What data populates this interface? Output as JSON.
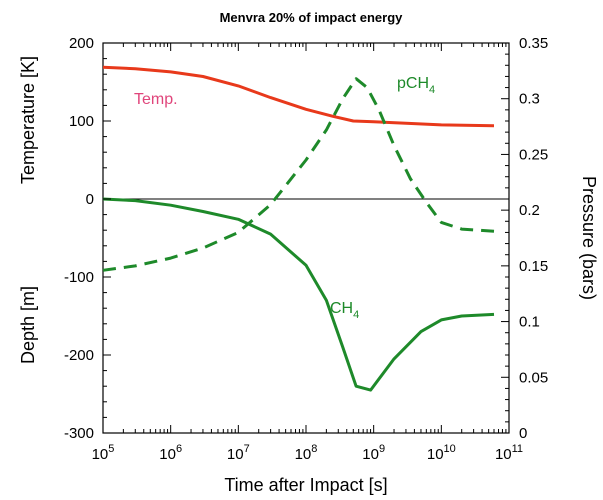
{
  "chart_data": {
    "type": "line",
    "title": "Menvra 20% of impact energy",
    "xlabel": "Time after Impact [s]",
    "xscale": "log",
    "xlim": [
      100000,
      100000000000
    ],
    "x_ticks": [
      {
        "value": 100000,
        "base": "10",
        "exp": "5"
      },
      {
        "value": 1000000,
        "base": "10",
        "exp": "6"
      },
      {
        "value": 10000000,
        "base": "10",
        "exp": "7"
      },
      {
        "value": 100000000,
        "base": "10",
        "exp": "8"
      },
      {
        "value": 1000000000,
        "base": "10",
        "exp": "9"
      },
      {
        "value": 10000000000,
        "base": "10",
        "exp": "10"
      },
      {
        "value": 100000000000,
        "base": "10",
        "exp": "11"
      }
    ],
    "left_axis": {
      "ylim": [
        -300,
        200
      ],
      "ticks": [
        "200",
        "100",
        "0",
        "-100",
        "-200",
        "-300"
      ],
      "label_upper": "Temperature [K]",
      "label_lower": "Depth [m]",
      "label_upper_color": "#e0457b",
      "label_lower_color": "#000000"
    },
    "right_axis": {
      "ylabel": "Pressure (bars)",
      "ylim": [
        0,
        0.35
      ],
      "ticks": [
        "0",
        "0.05",
        "0.1",
        "0.15",
        "0.2",
        "0.25",
        "0.3",
        "0.35"
      ]
    },
    "grid": false,
    "zero_line": 0,
    "series": [
      {
        "key": "temp",
        "axis": "left",
        "style": "solid",
        "color": "#e8391b",
        "label": "Temp.",
        "label_color": "#e0457b",
        "x": [
          100000,
          300000,
          1000000,
          3000000,
          10000000,
          30000000,
          100000000,
          250000000,
          500000000,
          1000000000,
          3000000000,
          10000000000,
          60000000000
        ],
        "y": [
          169,
          167,
          163,
          157,
          145,
          130,
          115,
          106,
          100,
          99,
          97,
          95,
          94
        ]
      },
      {
        "key": "pch4",
        "axis": "right",
        "style": "dashed",
        "color": "#1e8a2a",
        "label": "pCH",
        "label_sub": "4",
        "label_color": "#1e8a2a",
        "x": [
          100000,
          300000,
          1000000,
          3000000,
          10000000,
          30000000,
          100000000,
          200000000,
          350000000,
          550000000,
          800000000,
          1200000000,
          2000000000,
          3500000000,
          6000000000,
          10000000000,
          20000000000,
          60000000000
        ],
        "y": [
          0.146,
          0.15,
          0.157,
          0.166,
          0.18,
          0.205,
          0.245,
          0.272,
          0.3,
          0.318,
          0.31,
          0.29,
          0.258,
          0.228,
          0.207,
          0.189,
          0.183,
          0.181
        ]
      },
      {
        "key": "ch4",
        "axis": "left",
        "style": "solid",
        "color": "#1e8a2a",
        "label": "CH",
        "label_sub": "4",
        "label_color": "#1e8a2a",
        "x": [
          100000,
          300000,
          1000000,
          3000000,
          10000000,
          30000000,
          100000000,
          200000000,
          350000000,
          550000000,
          900000000,
          2000000000,
          5000000000,
          10000000000,
          20000000000,
          60000000000
        ],
        "y": [
          0,
          -2,
          -8,
          -16,
          -26,
          -45,
          -85,
          -130,
          -190,
          -240,
          -245,
          -205,
          -170,
          -155,
          -150,
          -148
        ]
      }
    ]
  }
}
